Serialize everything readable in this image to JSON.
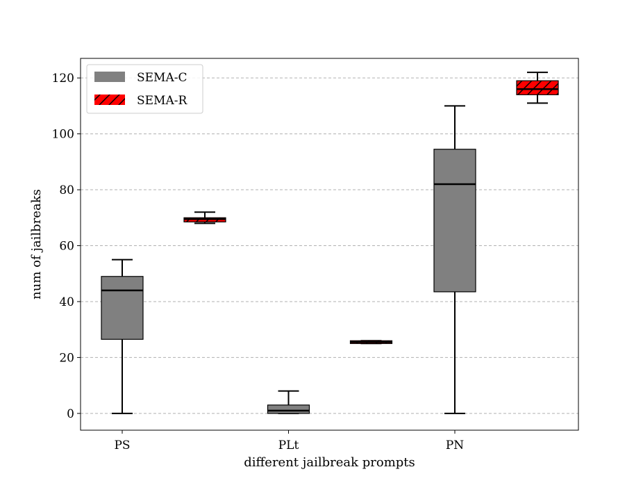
{
  "chart_data": {
    "type": "box",
    "title": "",
    "xlabel": "different jailbreak prompts",
    "ylabel": "num of jailbreaks",
    "ylim": [
      -6,
      127
    ],
    "yticks": [
      0,
      20,
      40,
      60,
      80,
      100,
      120
    ],
    "categories": [
      "PS",
      "PLt",
      "PN"
    ],
    "grid": "y-dashed",
    "legend_position": "top-left",
    "series": [
      {
        "name": "SEMA-C",
        "color": "#808080",
        "hatch": false,
        "boxes": [
          {
            "category": "PS",
            "min": 0,
            "q1": 26.5,
            "median": 44,
            "q3": 49,
            "max": 55
          },
          {
            "category": "PLt",
            "min": 0,
            "q1": 0,
            "median": 1,
            "q3": 3,
            "max": 8
          },
          {
            "category": "PN",
            "min": 0,
            "q1": 43.5,
            "median": 82,
            "q3": 94.5,
            "max": 110
          }
        ]
      },
      {
        "name": "SEMA-R",
        "color": "#ff0000",
        "hatch": true,
        "boxes": [
          {
            "category": "PS",
            "min": 68,
            "q1": 68.5,
            "median": 69.5,
            "q3": 70,
            "max": 72
          },
          {
            "category": "PLt",
            "min": 25,
            "q1": 25,
            "median": 25.5,
            "q3": 26,
            "max": 26
          },
          {
            "category": "PN",
            "min": 111,
            "q1": 114,
            "median": 116,
            "q3": 119,
            "max": 122
          }
        ]
      }
    ]
  }
}
